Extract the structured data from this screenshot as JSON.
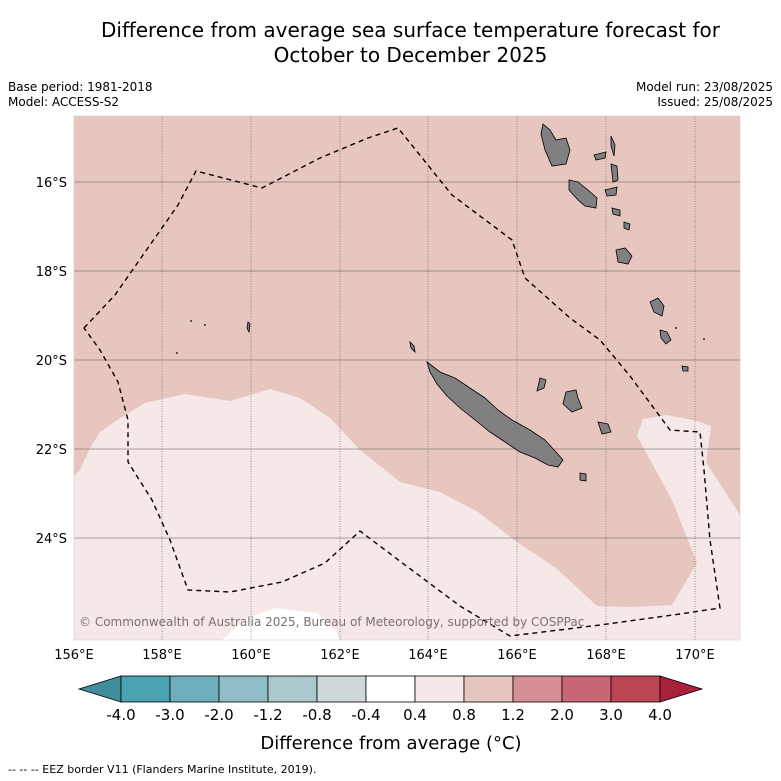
{
  "title_line1": "Difference from average sea surface temperature forecast for",
  "title_line2": "October to December 2025",
  "base_period": "Base period: 1981-2018",
  "model": "Model: ACCESS-S2",
  "model_run": "Model run: 23/08/2025",
  "issued": "Issued: 25/08/2025",
  "copyright": "© Commonwealth of Australia 2025, Bureau of Meteorology, supported by COSPPac",
  "lat_labels": [
    "16°S",
    "18°S",
    "20°S",
    "22°S",
    "24°S"
  ],
  "lon_labels": [
    "156°E",
    "158°E",
    "160°E",
    "162°E",
    "164°E",
    "166°E",
    "168°E",
    "170°E"
  ],
  "colorbar": {
    "title": "Difference from average (°C)",
    "tick_labels": [
      "-4.0",
      "-3.0",
      "-2.0",
      "-1.2",
      "-0.8",
      "-0.4",
      "0.4",
      "0.8",
      "1.2",
      "2.0",
      "3.0",
      "4.0"
    ],
    "colors": [
      "#3f8e9c",
      "#4aa3b2",
      "#6dafbd",
      "#8fbcc6",
      "#abc8cc",
      "#cfd8d9",
      "#ffffff",
      "#f5e8e6",
      "#e8c6c0",
      "#d68f95",
      "#c96673",
      "#bb4553",
      "#a8203a"
    ]
  },
  "map_colors": {
    "band_0.4_0.8": "#f5e8e6",
    "band_0.8_1.2": "#e8c6c0",
    "land": "#808080"
  },
  "footer": "--  --  -- EEZ border V11 (Flanders Marine Institute, 2019)."
}
